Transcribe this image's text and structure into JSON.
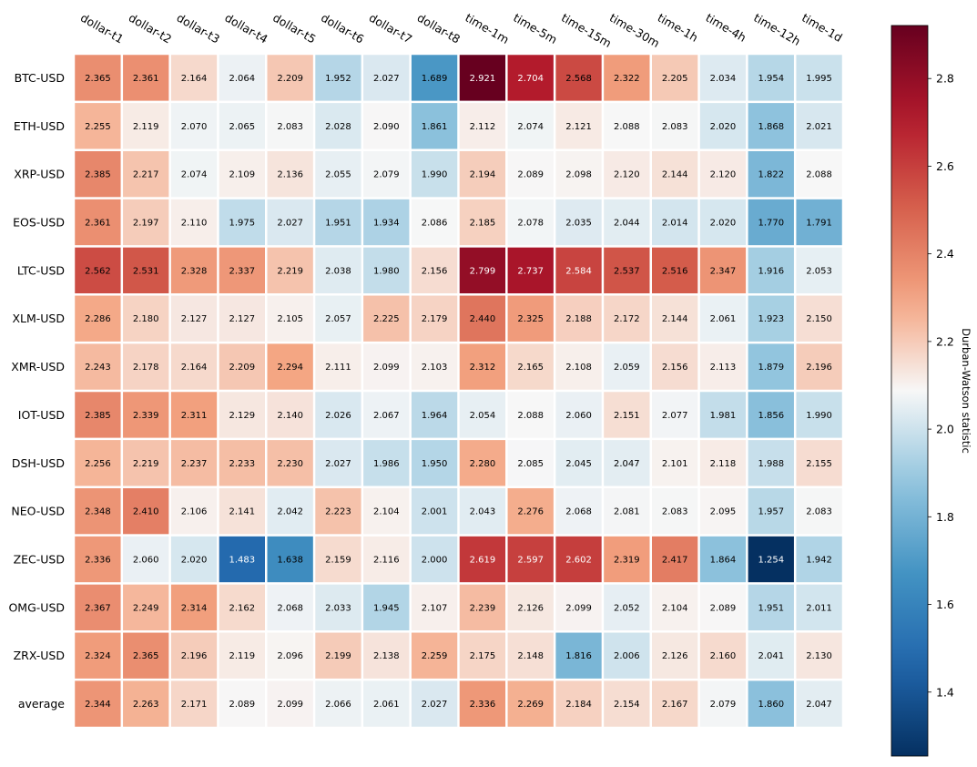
{
  "chart_data": {
    "type": "heatmap",
    "title": "",
    "xlabel": "",
    "ylabel": "",
    "columns": [
      "dollar-t1",
      "dollar-t2",
      "dollar-t3",
      "dollar-t4",
      "dollar-t5",
      "dollar-t6",
      "dollar-t7",
      "dollar-t8",
      "time-1m",
      "time-5m",
      "time-15m",
      "time-30m",
      "time-1h",
      "time-4h",
      "time-12h",
      "time-1d"
    ],
    "rows": [
      "BTC-USD",
      "ETH-USD",
      "XRP-USD",
      "EOS-USD",
      "LTC-USD",
      "XLM-USD",
      "XMR-USD",
      "IOT-USD",
      "DSH-USD",
      "NEO-USD",
      "ZEC-USD",
      "OMG-USD",
      "ZRX-USD",
      "average"
    ],
    "values": [
      [
        2.365,
        2.361,
        2.164,
        2.064,
        2.209,
        1.952,
        2.027,
        1.689,
        2.921,
        2.704,
        2.568,
        2.322,
        2.205,
        2.034,
        1.954,
        1.995
      ],
      [
        2.255,
        2.119,
        2.07,
        2.065,
        2.083,
        2.028,
        2.09,
        1.861,
        2.112,
        2.074,
        2.121,
        2.088,
        2.083,
        2.02,
        1.868,
        2.021
      ],
      [
        2.385,
        2.217,
        2.074,
        2.109,
        2.136,
        2.055,
        2.079,
        1.99,
        2.194,
        2.089,
        2.098,
        2.12,
        2.144,
        2.12,
        1.822,
        2.088
      ],
      [
        2.361,
        2.197,
        2.11,
        1.975,
        2.027,
        1.951,
        1.934,
        2.086,
        2.185,
        2.078,
        2.035,
        2.044,
        2.014,
        2.02,
        1.77,
        1.791
      ],
      [
        2.562,
        2.531,
        2.328,
        2.337,
        2.219,
        2.038,
        1.98,
        2.156,
        2.799,
        2.737,
        2.584,
        2.537,
        2.516,
        2.347,
        1.916,
        2.053
      ],
      [
        2.286,
        2.18,
        2.127,
        2.127,
        2.105,
        2.057,
        2.225,
        2.179,
        2.44,
        2.325,
        2.188,
        2.172,
        2.144,
        2.061,
        1.923,
        2.15
      ],
      [
        2.243,
        2.178,
        2.164,
        2.209,
        2.294,
        2.111,
        2.099,
        2.103,
        2.312,
        2.165,
        2.108,
        2.059,
        2.156,
        2.113,
        1.879,
        2.196
      ],
      [
        2.385,
        2.339,
        2.311,
        2.129,
        2.14,
        2.026,
        2.067,
        1.964,
        2.054,
        2.088,
        2.06,
        2.151,
        2.077,
        1.981,
        1.856,
        1.99
      ],
      [
        2.256,
        2.219,
        2.237,
        2.233,
        2.23,
        2.027,
        1.986,
        1.95,
        2.28,
        2.085,
        2.045,
        2.047,
        2.101,
        2.118,
        1.988,
        2.155
      ],
      [
        2.348,
        2.41,
        2.106,
        2.141,
        2.042,
        2.223,
        2.104,
        2.001,
        2.043,
        2.276,
        2.068,
        2.081,
        2.083,
        2.095,
        1.957,
        2.083
      ],
      [
        2.336,
        2.06,
        2.02,
        1.483,
        1.638,
        2.159,
        2.116,
        2.0,
        2.619,
        2.597,
        2.602,
        2.319,
        2.417,
        1.864,
        1.254,
        1.942
      ],
      [
        2.367,
        2.249,
        2.314,
        2.162,
        2.068,
        2.033,
        1.945,
        2.107,
        2.239,
        2.126,
        2.099,
        2.052,
        2.104,
        2.089,
        1.951,
        2.011
      ],
      [
        2.324,
        2.365,
        2.196,
        2.119,
        2.096,
        2.199,
        2.138,
        2.259,
        2.175,
        2.148,
        1.816,
        2.006,
        2.126,
        2.16,
        2.041,
        2.13
      ],
      [
        2.344,
        2.263,
        2.171,
        2.089,
        2.099,
        2.066,
        2.061,
        2.027,
        2.336,
        2.269,
        2.184,
        2.154,
        2.167,
        2.079,
        1.86,
        2.047
      ]
    ],
    "value_format": "3 decimals",
    "colormap": "RdBu_r",
    "vmin": 1.254,
    "vmax": 2.921,
    "colorbar": {
      "label": "Durban-Watson statistic",
      "ticks": [
        1.4,
        1.6,
        1.8,
        2.0,
        2.2,
        2.4,
        2.6,
        2.8
      ],
      "tick_labels": [
        "1.4",
        "1.6",
        "1.8",
        "2.0",
        "2.2",
        "2.4",
        "2.6",
        "2.8"
      ],
      "placement": "right"
    },
    "grid": false,
    "cell_separator_color": "#ffffff"
  }
}
